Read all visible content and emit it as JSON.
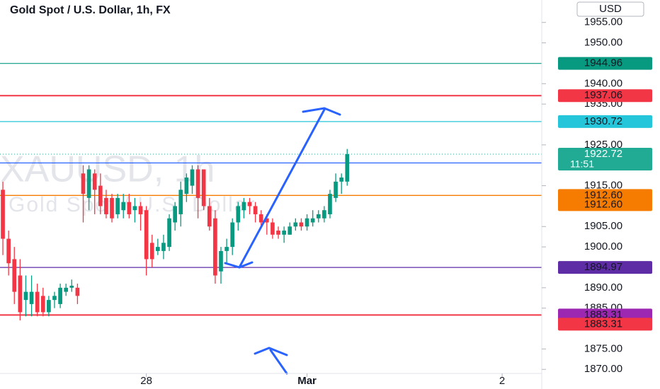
{
  "chart_data": {
    "type": "candlestick",
    "title": "Gold Spot / U.S. Dollar, 1h, FX",
    "currency": "USD",
    "watermark": [
      "XAUUSD, 1h",
      "Gold Spot / U.S. Dollar"
    ],
    "up_color": "#089981",
    "down_color": "#f23645",
    "x": [
      0,
      1,
      2,
      3,
      4,
      5,
      6,
      7,
      8,
      9,
      10,
      11,
      12,
      13,
      14,
      15,
      16,
      17,
      18,
      19,
      20,
      21,
      22,
      23,
      24,
      25,
      26,
      27,
      28,
      29,
      30,
      31,
      32,
      33,
      34,
      35,
      36,
      37,
      38,
      39,
      40,
      41,
      42,
      43,
      44,
      45,
      46,
      47,
      48,
      49,
      50,
      51,
      52,
      53,
      54,
      55,
      56,
      57,
      58,
      59,
      60
    ],
    "open": [
      1914,
      1902,
      1897,
      1893,
      1887,
      1886,
      1889,
      1888,
      1884,
      1887,
      1886,
      1889,
      1890,
      1890,
      1918,
      1912,
      1918,
      1915,
      1912,
      1912,
      1908,
      1909,
      1911,
      1909,
      1910,
      1909,
      1901,
      1899,
      1899,
      1900,
      1906,
      1908,
      1913,
      1915,
      1919,
      1919,
      1910,
      1907,
      1894,
      1899,
      1900,
      1906,
      1909,
      1911,
      1910,
      1908,
      1907,
      1906,
      1904,
      1903,
      1903,
      1905,
      1906,
      1905,
      1906,
      1907,
      1907,
      1908,
      1912,
      1916,
      1916
    ],
    "high": [
      1916,
      1904,
      1900,
      1897,
      1893,
      1893,
      1891,
      1890,
      1888,
      1889,
      1891,
      1891,
      1892,
      1891,
      1920,
      1920,
      1919,
      1918,
      1914,
      1913,
      1913,
      1913,
      1913,
      1912,
      1911,
      1910,
      1903,
      1902,
      1903,
      1908,
      1911,
      1916,
      1918,
      1920,
      1920,
      1919,
      1912,
      1909,
      1900,
      1902,
      1907,
      1911,
      1912,
      1912,
      1911,
      1909,
      1908,
      1907,
      1905,
      1905,
      1906,
      1907,
      1907,
      1908,
      1909,
      1909,
      1910,
      1914,
      1918,
      1918,
      1924
    ],
    "low": [
      1898,
      1893,
      1886,
      1882,
      1883,
      1883,
      1883,
      1883,
      1883,
      1885,
      1885,
      1888,
      1889,
      1886,
      1906,
      1909,
      1908,
      1908,
      1907,
      1906,
      1907,
      1907,
      1907,
      1906,
      1904,
      1893,
      1895,
      1898,
      1897,
      1899,
      1904,
      1905,
      1911,
      1913,
      1907,
      1909,
      1904,
      1891,
      1891,
      1896,
      1898,
      1904,
      1907,
      1908,
      1906,
      1905,
      1903,
      1902,
      1902,
      1901,
      1903,
      1904,
      1904,
      1904,
      1905,
      1906,
      1906,
      1907,
      1911,
      1913,
      1915
    ],
    "close": [
      1902,
      1896,
      1889,
      1884,
      1889,
      1889,
      1884,
      1884,
      1887,
      1888,
      1890,
      1890,
      1890.5,
      1888,
      1913,
      1919,
      1914,
      1910,
      1908,
      1907,
      1912,
      1911,
      1908,
      1910,
      1908,
      1897,
      1897,
      1900,
      1901,
      1907,
      1910,
      1914,
      1917,
      1919,
      1912,
      1910,
      1905,
      1893,
      1899,
      1900,
      1906,
      1910,
      1911,
      1910,
      1908,
      1906,
      1906,
      1903,
      1903,
      1904,
      1905,
      1906,
      1905,
      1907,
      1907,
      1908,
      1909,
      1913,
      1916,
      1917,
      1922.72
    ],
    "xlim": [
      -0.5,
      93.9
    ],
    "xticks": [
      {
        "value": 25,
        "label": "28"
      },
      {
        "value": 53,
        "label": "Mar"
      },
      {
        "value": 87,
        "label": "2"
      }
    ],
    "ylim": [
      1869,
      1960.5
    ],
    "yticks": [
      {
        "value": 1870,
        "label": "1870.00"
      },
      {
        "value": 1875,
        "label": "1875.00"
      },
      {
        "value": 1885,
        "label": "1885.00"
      },
      {
        "value": 1890,
        "label": "1890.00"
      },
      {
        "value": 1900,
        "label": "1900.00"
      },
      {
        "value": 1905,
        "label": "1905.00"
      },
      {
        "value": 1915,
        "label": "1915.00"
      },
      {
        "value": 1925,
        "label": "1925.00"
      },
      {
        "value": 1935,
        "label": "1935.00"
      },
      {
        "value": 1940,
        "label": "1940.00"
      },
      {
        "value": 1950,
        "label": "1950.00"
      },
      {
        "value": 1955,
        "label": "1955.00"
      }
    ],
    "levels": [
      {
        "value": 1944.96,
        "color": "#089981"
      },
      {
        "value": 1937.06,
        "color": "#f23645"
      },
      {
        "value": 1930.72,
        "color": "#26c6da"
      },
      {
        "value": 1920.58,
        "color": "#2962ff"
      },
      {
        "value": 1912.6,
        "label": "1912.60",
        "color": "#f57c00"
      },
      {
        "value": 1912.6,
        "label": "1912.60",
        "color": "#f57c00"
      },
      {
        "value": 1894.97,
        "color": "#5e2ca5"
      },
      {
        "value": 1883.31,
        "color": "#9c27b0"
      },
      {
        "value": 1883.31,
        "color": "#f23645"
      }
    ],
    "current_price": {
      "value": 1922.72,
      "countdown": "11:51",
      "color": "#22ab94"
    }
  }
}
